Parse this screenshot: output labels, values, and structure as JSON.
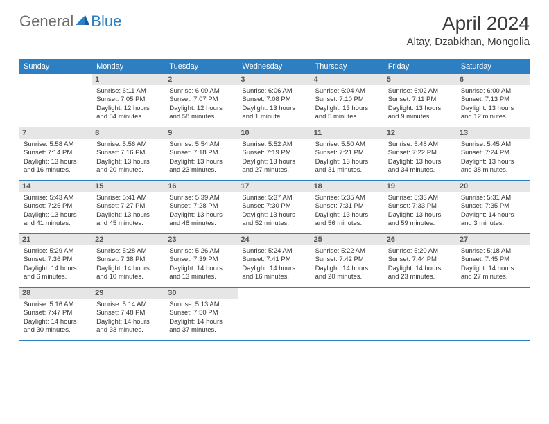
{
  "logo": {
    "word1": "General",
    "word2": "Blue"
  },
  "title": "April 2024",
  "location": "Altay, Dzabkhan, Mongolia",
  "colors": {
    "accent": "#2d7fc1",
    "header_text": "#ffffff",
    "daynum_bg": "#e6e6e6",
    "text": "#333333",
    "logo_gray": "#6b6b6b"
  },
  "day_headers": [
    "Sunday",
    "Monday",
    "Tuesday",
    "Wednesday",
    "Thursday",
    "Friday",
    "Saturday"
  ],
  "weeks": [
    [
      null,
      {
        "n": "1",
        "sr": "6:11 AM",
        "ss": "7:05 PM",
        "dl": "12 hours and 54 minutes."
      },
      {
        "n": "2",
        "sr": "6:09 AM",
        "ss": "7:07 PM",
        "dl": "12 hours and 58 minutes."
      },
      {
        "n": "3",
        "sr": "6:06 AM",
        "ss": "7:08 PM",
        "dl": "13 hours and 1 minute."
      },
      {
        "n": "4",
        "sr": "6:04 AM",
        "ss": "7:10 PM",
        "dl": "13 hours and 5 minutes."
      },
      {
        "n": "5",
        "sr": "6:02 AM",
        "ss": "7:11 PM",
        "dl": "13 hours and 9 minutes."
      },
      {
        "n": "6",
        "sr": "6:00 AM",
        "ss": "7:13 PM",
        "dl": "13 hours and 12 minutes."
      }
    ],
    [
      {
        "n": "7",
        "sr": "5:58 AM",
        "ss": "7:14 PM",
        "dl": "13 hours and 16 minutes."
      },
      {
        "n": "8",
        "sr": "5:56 AM",
        "ss": "7:16 PM",
        "dl": "13 hours and 20 minutes."
      },
      {
        "n": "9",
        "sr": "5:54 AM",
        "ss": "7:18 PM",
        "dl": "13 hours and 23 minutes."
      },
      {
        "n": "10",
        "sr": "5:52 AM",
        "ss": "7:19 PM",
        "dl": "13 hours and 27 minutes."
      },
      {
        "n": "11",
        "sr": "5:50 AM",
        "ss": "7:21 PM",
        "dl": "13 hours and 31 minutes."
      },
      {
        "n": "12",
        "sr": "5:48 AM",
        "ss": "7:22 PM",
        "dl": "13 hours and 34 minutes."
      },
      {
        "n": "13",
        "sr": "5:45 AM",
        "ss": "7:24 PM",
        "dl": "13 hours and 38 minutes."
      }
    ],
    [
      {
        "n": "14",
        "sr": "5:43 AM",
        "ss": "7:25 PM",
        "dl": "13 hours and 41 minutes."
      },
      {
        "n": "15",
        "sr": "5:41 AM",
        "ss": "7:27 PM",
        "dl": "13 hours and 45 minutes."
      },
      {
        "n": "16",
        "sr": "5:39 AM",
        "ss": "7:28 PM",
        "dl": "13 hours and 48 minutes."
      },
      {
        "n": "17",
        "sr": "5:37 AM",
        "ss": "7:30 PM",
        "dl": "13 hours and 52 minutes."
      },
      {
        "n": "18",
        "sr": "5:35 AM",
        "ss": "7:31 PM",
        "dl": "13 hours and 56 minutes."
      },
      {
        "n": "19",
        "sr": "5:33 AM",
        "ss": "7:33 PM",
        "dl": "13 hours and 59 minutes."
      },
      {
        "n": "20",
        "sr": "5:31 AM",
        "ss": "7:35 PM",
        "dl": "14 hours and 3 minutes."
      }
    ],
    [
      {
        "n": "21",
        "sr": "5:29 AM",
        "ss": "7:36 PM",
        "dl": "14 hours and 6 minutes."
      },
      {
        "n": "22",
        "sr": "5:28 AM",
        "ss": "7:38 PM",
        "dl": "14 hours and 10 minutes."
      },
      {
        "n": "23",
        "sr": "5:26 AM",
        "ss": "7:39 PM",
        "dl": "14 hours and 13 minutes."
      },
      {
        "n": "24",
        "sr": "5:24 AM",
        "ss": "7:41 PM",
        "dl": "14 hours and 16 minutes."
      },
      {
        "n": "25",
        "sr": "5:22 AM",
        "ss": "7:42 PM",
        "dl": "14 hours and 20 minutes."
      },
      {
        "n": "26",
        "sr": "5:20 AM",
        "ss": "7:44 PM",
        "dl": "14 hours and 23 minutes."
      },
      {
        "n": "27",
        "sr": "5:18 AM",
        "ss": "7:45 PM",
        "dl": "14 hours and 27 minutes."
      }
    ],
    [
      {
        "n": "28",
        "sr": "5:16 AM",
        "ss": "7:47 PM",
        "dl": "14 hours and 30 minutes."
      },
      {
        "n": "29",
        "sr": "5:14 AM",
        "ss": "7:48 PM",
        "dl": "14 hours and 33 minutes."
      },
      {
        "n": "30",
        "sr": "5:13 AM",
        "ss": "7:50 PM",
        "dl": "14 hours and 37 minutes."
      },
      null,
      null,
      null,
      null
    ]
  ],
  "labels": {
    "sunrise": "Sunrise:",
    "sunset": "Sunset:",
    "daylight": "Daylight:"
  },
  "typography": {
    "title_fontsize": 28,
    "location_fontsize": 15,
    "dayhead_fontsize": 11,
    "body_fontsize": 9.5
  }
}
